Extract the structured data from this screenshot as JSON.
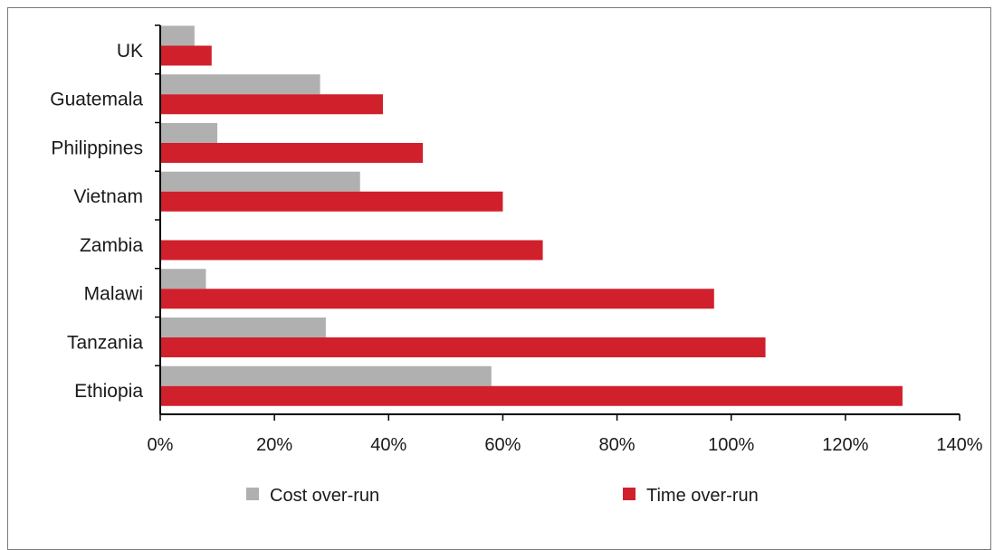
{
  "chart_data": {
    "type": "bar",
    "orientation": "horizontal",
    "title": "",
    "xlabel": "",
    "ylabel": "",
    "categories": [
      "UK",
      "Guatemala",
      "Philippines",
      "Vietnam",
      "Zambia",
      "Malawi",
      "Tanzania",
      "Ethiopia"
    ],
    "series": [
      {
        "name": "Cost over-run",
        "color": "#b0b0b0",
        "values": [
          6,
          28,
          10,
          35,
          0,
          8,
          29,
          58
        ]
      },
      {
        "name": "Time over-run",
        "color": "#d0202c",
        "values": [
          9,
          39,
          46,
          60,
          67,
          97,
          106,
          130
        ]
      }
    ],
    "xlim": [
      0,
      140
    ],
    "xticks": [
      0,
      20,
      40,
      60,
      80,
      100,
      120,
      140
    ],
    "tick_format": "percent",
    "grid": false,
    "legend_position": "bottom"
  }
}
